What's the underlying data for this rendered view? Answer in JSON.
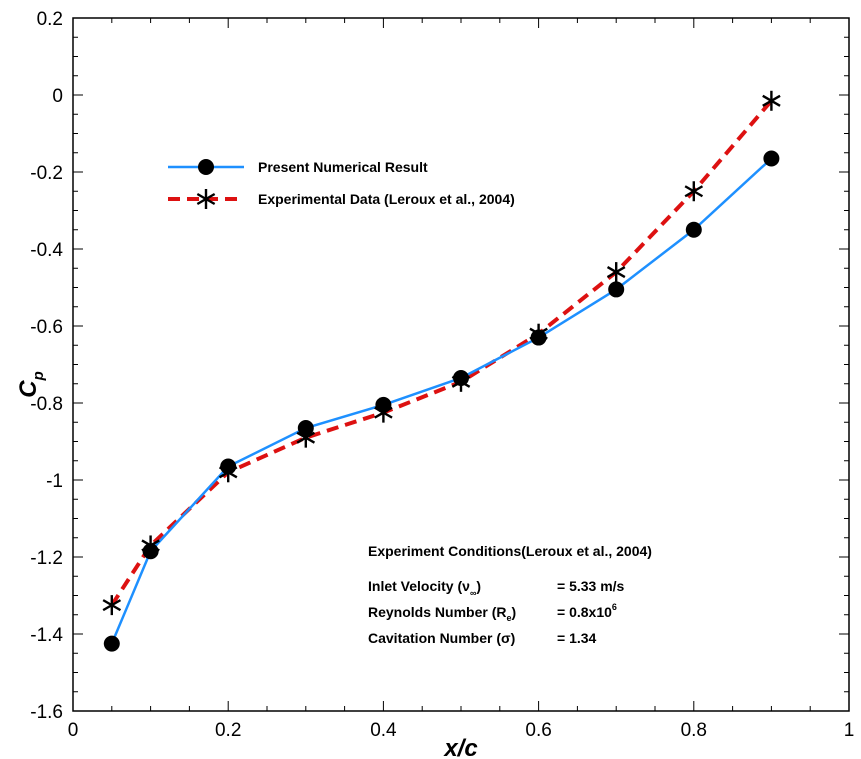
{
  "chart_data": {
    "type": "line",
    "xlabel": "x/c",
    "ylabel_main": "C",
    "ylabel_sub": "p",
    "xlim": [
      0,
      1
    ],
    "ylim": [
      -1.6,
      0.2
    ],
    "x_ticks": [
      "0",
      "0.2",
      "0.4",
      "0.6",
      "0.8",
      "1"
    ],
    "x_tick_values": [
      0,
      0.2,
      0.4,
      0.6,
      0.8,
      1.0
    ],
    "y_ticks": [
      "0.2",
      "0",
      "-0.2",
      "-0.4",
      "-0.6",
      "-0.8",
      "-1",
      "-1.2",
      "-1.4",
      "-1.6"
    ],
    "y_tick_values": [
      0.2,
      0,
      -0.2,
      -0.4,
      -0.6,
      -0.8,
      -1.0,
      -1.2,
      -1.4,
      -1.6
    ],
    "grid": false,
    "legend_position": "upper-left",
    "series": [
      {
        "name": "Present Numerical Result",
        "color": "#1e90ff",
        "line": "solid",
        "marker": "circle",
        "x": [
          0.05,
          0.1,
          0.2,
          0.3,
          0.4,
          0.5,
          0.6,
          0.7,
          0.8,
          0.9
        ],
        "y": [
          -1.425,
          -1.185,
          -0.965,
          -0.865,
          -0.805,
          -0.735,
          -0.63,
          -0.505,
          -0.35,
          -0.165
        ]
      },
      {
        "name": "Experimental Data (Leroux et al., 2004)",
        "color": "#dd1111",
        "line": "dashed",
        "marker": "asterisk",
        "x": [
          0.05,
          0.1,
          0.2,
          0.3,
          0.4,
          0.5,
          0.6,
          0.7,
          0.8,
          0.9
        ],
        "y": [
          -1.325,
          -1.17,
          -0.98,
          -0.89,
          -0.825,
          -0.745,
          -0.62,
          -0.46,
          -0.25,
          -0.015
        ]
      }
    ],
    "annotation": {
      "title": "Experiment Conditions(Leroux et al., 2004)",
      "rows": [
        {
          "label": "Inlet Velocity (ν",
          "sub": "∞",
          "label_end": ")",
          "value": "= 5.33 m/s"
        },
        {
          "label": "Reynolds Number (R",
          "sub": "e",
          "label_end": ")",
          "value_base": "= 0.8x10",
          "value_sup": "6"
        },
        {
          "label": "Cavitation Number (σ)",
          "value": "= 1.34"
        }
      ]
    }
  }
}
